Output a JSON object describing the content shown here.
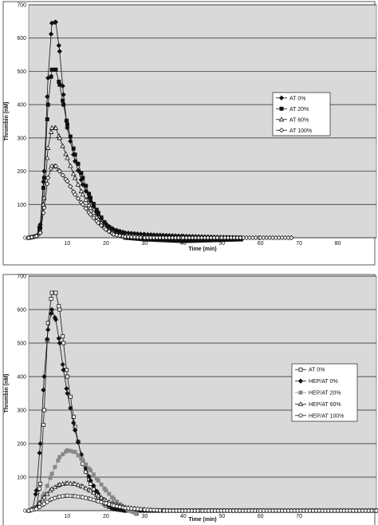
{
  "chart_data": [
    {
      "type": "line",
      "title": "",
      "xlabel": "Time (min)",
      "ylabel": "Thrombin (nM)",
      "xlim": [
        0,
        90
      ],
      "ylim": [
        0,
        700
      ],
      "xticks": [
        10,
        20,
        30,
        40,
        50,
        60,
        70,
        80
      ],
      "yticks": [
        0,
        100,
        200,
        300,
        400,
        500,
        600,
        700
      ],
      "grid": true,
      "legend_position": "right",
      "series": [
        {
          "name": "AT 0%",
          "marker": "diamond-filled",
          "color": "#111111",
          "points": [
            [
              0,
              0
            ],
            [
              2,
              5
            ],
            [
              3,
              40
            ],
            [
              4,
              200
            ],
            [
              5,
              480
            ],
            [
              6,
              645
            ],
            [
              7,
              648
            ],
            [
              8,
              560
            ],
            [
              9,
              430
            ],
            [
              10,
              330
            ],
            [
              12,
              230
            ],
            [
              14,
              160
            ],
            [
              16,
              110
            ],
            [
              18,
              70
            ],
            [
              20,
              40
            ],
            [
              22,
              25
            ],
            [
              25,
              15
            ],
            [
              30,
              10
            ],
            [
              40,
              5
            ],
            [
              55,
              0
            ]
          ]
        },
        {
          "name": "AT 20%",
          "marker": "square-filled",
          "color": "#111111",
          "points": [
            [
              0,
              0
            ],
            [
              2,
              5
            ],
            [
              3,
              30
            ],
            [
              4,
              180
            ],
            [
              5,
              400
            ],
            [
              6,
              505
            ],
            [
              7,
              505
            ],
            [
              8,
              460
            ],
            [
              9,
              400
            ],
            [
              10,
              340
            ],
            [
              12,
              250
            ],
            [
              14,
              180
            ],
            [
              16,
              120
            ],
            [
              18,
              75
            ],
            [
              20,
              40
            ],
            [
              22,
              20
            ],
            [
              25,
              0
            ],
            [
              30,
              -5
            ],
            [
              40,
              -10
            ],
            [
              55,
              -5
            ]
          ]
        },
        {
          "name": "AT 60%",
          "marker": "triangle-open",
          "color": "#111111",
          "points": [
            [
              0,
              0
            ],
            [
              2,
              5
            ],
            [
              3,
              20
            ],
            [
              4,
              120
            ],
            [
              5,
              270
            ],
            [
              6,
              330
            ],
            [
              7,
              330
            ],
            [
              8,
              300
            ],
            [
              10,
              240
            ],
            [
              12,
              180
            ],
            [
              14,
              130
            ],
            [
              16,
              90
            ],
            [
              18,
              55
            ],
            [
              20,
              30
            ],
            [
              22,
              15
            ],
            [
              25,
              5
            ],
            [
              30,
              0
            ],
            [
              40,
              0
            ],
            [
              55,
              0
            ]
          ]
        },
        {
          "name": "AT 100%",
          "marker": "diamond-open",
          "color": "#111111",
          "points": [
            [
              0,
              0
            ],
            [
              2,
              5
            ],
            [
              3,
              15
            ],
            [
              4,
              90
            ],
            [
              5,
              180
            ],
            [
              6,
              215
            ],
            [
              7,
              215
            ],
            [
              8,
              200
            ],
            [
              10,
              170
            ],
            [
              12,
              130
            ],
            [
              14,
              100
            ],
            [
              16,
              70
            ],
            [
              18,
              45
            ],
            [
              20,
              25
            ],
            [
              22,
              10
            ],
            [
              25,
              3
            ],
            [
              30,
              0
            ],
            [
              40,
              0
            ],
            [
              50,
              0
            ],
            [
              60,
              0
            ],
            [
              68,
              0
            ]
          ]
        }
      ]
    },
    {
      "type": "line",
      "title": "",
      "xlabel": "Time (min)",
      "ylabel": "Thrombin (nM)",
      "xlim": [
        0,
        90
      ],
      "ylim": [
        0,
        700
      ],
      "xticks": [
        10,
        20,
        30,
        40,
        50,
        60,
        70
      ],
      "yticks": [
        0,
        100,
        200,
        300,
        400,
        500,
        600,
        700
      ],
      "grid": true,
      "legend_position": "right",
      "series": [
        {
          "name": "AT 0%",
          "marker": "square-open",
          "color": "#111111",
          "points": [
            [
              0,
              0
            ],
            [
              2,
              10
            ],
            [
              3,
              80
            ],
            [
              4,
              300
            ],
            [
              5,
              560
            ],
            [
              6,
              650
            ],
            [
              7,
              650
            ],
            [
              8,
              600
            ],
            [
              9,
              500
            ],
            [
              10,
              400
            ],
            [
              12,
              250
            ],
            [
              14,
              140
            ],
            [
              16,
              80
            ],
            [
              18,
              40
            ],
            [
              20,
              15
            ],
            [
              22,
              5
            ],
            [
              25,
              0
            ],
            [
              40,
              0
            ],
            [
              60,
              0
            ],
            [
              90,
              0
            ]
          ]
        },
        {
          "name": "HEP/AT 0%",
          "marker": "diamond-filled",
          "color": "#111111",
          "points": [
            [
              0,
              0
            ],
            [
              1,
              5
            ],
            [
              2,
              60
            ],
            [
              3,
              200
            ],
            [
              4,
              400
            ],
            [
              5,
              540
            ],
            [
              6,
              600
            ],
            [
              7,
              570
            ],
            [
              8,
              500
            ],
            [
              9,
              420
            ],
            [
              10,
              350
            ],
            [
              12,
              240
            ],
            [
              14,
              150
            ],
            [
              16,
              90
            ],
            [
              18,
              50
            ],
            [
              20,
              20
            ],
            [
              22,
              5
            ],
            [
              25,
              0
            ],
            [
              40,
              0
            ],
            [
              60,
              0
            ],
            [
              90,
              0
            ]
          ]
        },
        {
          "name": "HEP/AT 20%",
          "marker": "square-filled",
          "color": "#888888",
          "points": [
            [
              0,
              0
            ],
            [
              2,
              10
            ],
            [
              4,
              50
            ],
            [
              6,
              110
            ],
            [
              8,
              160
            ],
            [
              10,
              180
            ],
            [
              12,
              175
            ],
            [
              14,
              150
            ],
            [
              16,
              120
            ],
            [
              18,
              90
            ],
            [
              20,
              60
            ],
            [
              22,
              35
            ],
            [
              24,
              15
            ],
            [
              26,
              0
            ],
            [
              28,
              -10
            ]
          ]
        },
        {
          "name": "HEP/AT 60%",
          "marker": "triangle-open",
          "color": "#111111",
          "points": [
            [
              0,
              0
            ],
            [
              2,
              10
            ],
            [
              4,
              40
            ],
            [
              6,
              65
            ],
            [
              8,
              78
            ],
            [
              10,
              82
            ],
            [
              12,
              80
            ],
            [
              14,
              72
            ],
            [
              16,
              60
            ],
            [
              18,
              45
            ],
            [
              20,
              30
            ],
            [
              22,
              20
            ],
            [
              25,
              10
            ],
            [
              30,
              3
            ],
            [
              35,
              0
            ],
            [
              45,
              0
            ],
            [
              60,
              0
            ],
            [
              90,
              0
            ]
          ]
        },
        {
          "name": "HEP/AT 100%",
          "marker": "circle-open",
          "color": "#111111",
          "points": [
            [
              0,
              0
            ],
            [
              2,
              5
            ],
            [
              4,
              20
            ],
            [
              6,
              35
            ],
            [
              8,
              42
            ],
            [
              10,
              45
            ],
            [
              12,
              43
            ],
            [
              14,
              40
            ],
            [
              16,
              35
            ],
            [
              18,
              28
            ],
            [
              20,
              22
            ],
            [
              22,
              15
            ],
            [
              25,
              8
            ],
            [
              30,
              3
            ],
            [
              35,
              0
            ],
            [
              45,
              0
            ],
            [
              60,
              0
            ],
            [
              90,
              0
            ]
          ]
        }
      ]
    }
  ]
}
